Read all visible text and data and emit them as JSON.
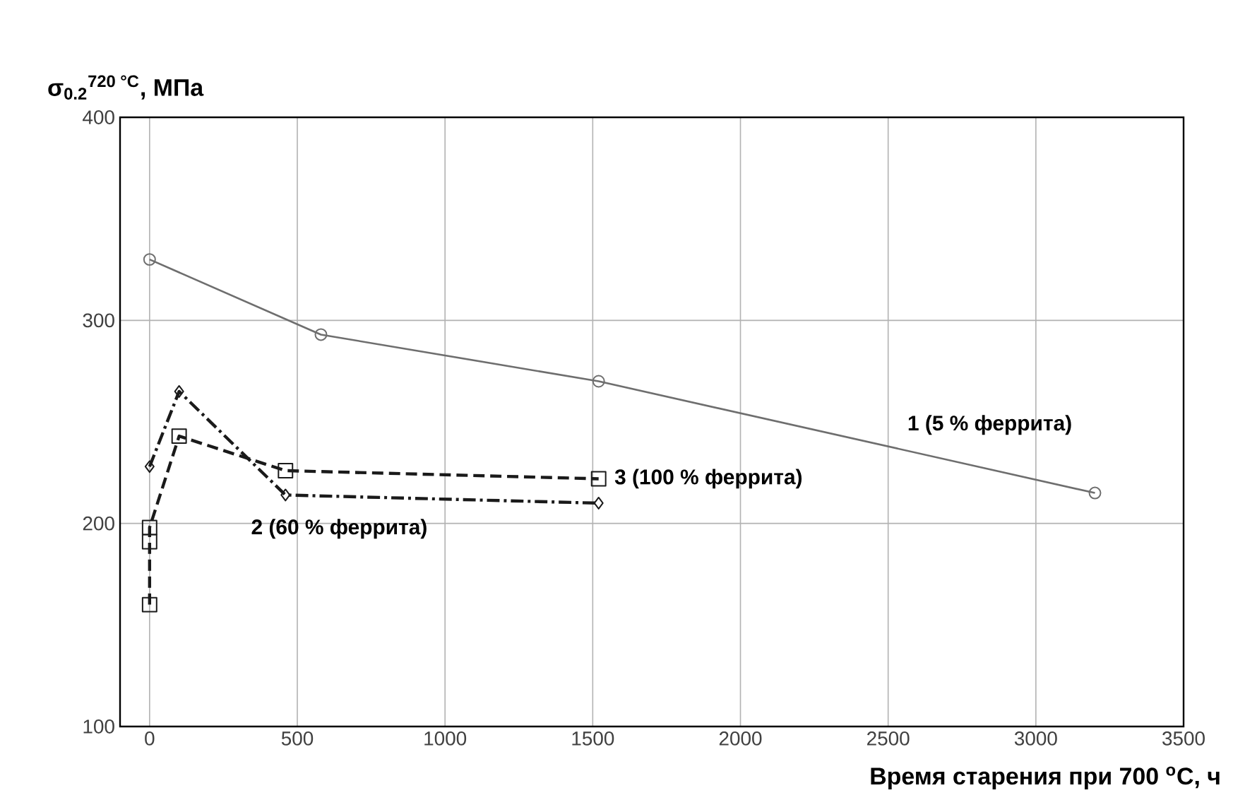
{
  "chart_data": {
    "type": "line",
    "ylabel": "σ$_{0.2}$$^{720 °C}$, МПа",
    "xlabel": "Время старения при 700 $^{o}$C, ч",
    "xlim": [
      -100,
      3500
    ],
    "ylim": [
      100,
      400
    ],
    "xticks": [
      0,
      500,
      1000,
      1500,
      2000,
      2500,
      3000,
      3500
    ],
    "yticks": [
      100,
      200,
      300,
      400
    ],
    "grid": true,
    "series": [
      {
        "name": "1 (5 % феррита)",
        "color": "#6e6e6e",
        "marker": "circle",
        "line_style": "solid",
        "x": [
          0,
          580,
          1520,
          3200
        ],
        "values": [
          330,
          293,
          270,
          215
        ]
      },
      {
        "name": "2 (60 % феррита)",
        "color": "#1a1a1a",
        "marker": "diamond",
        "line_style": "dashdot",
        "x": [
          0,
          100,
          460,
          1520
        ],
        "values": [
          228,
          265,
          214,
          210
        ]
      },
      {
        "name": "3 (100 % феррита)",
        "color": "#1a1a1a",
        "marker": "square",
        "line_style": "dashed",
        "x": [
          0,
          0,
          0,
          100,
          460,
          1520
        ],
        "values": [
          160,
          191,
          198,
          243,
          226,
          222
        ]
      }
    ]
  }
}
